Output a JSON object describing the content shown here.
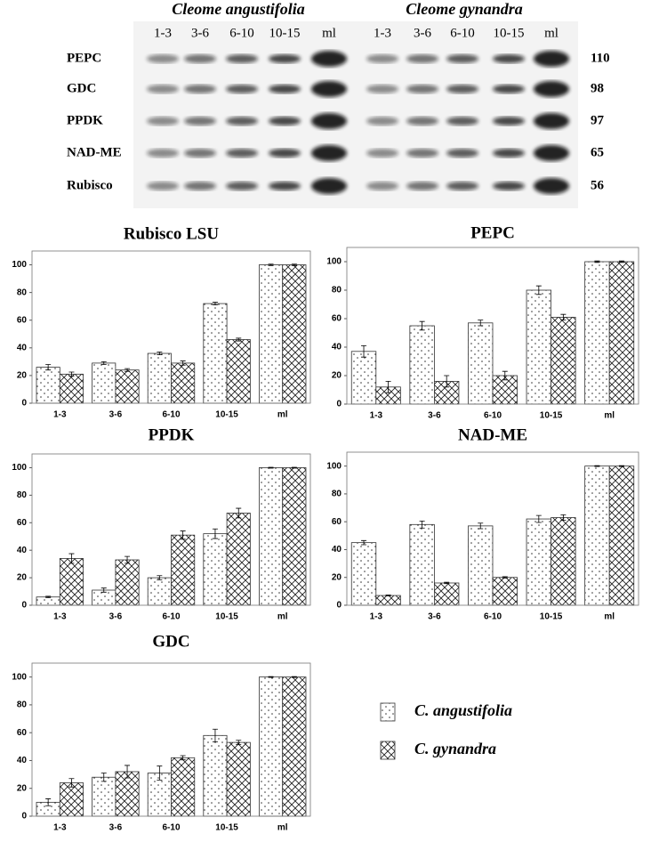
{
  "blot": {
    "species": [
      "Cleome angustifolia",
      "Cleome gynandra"
    ],
    "lanes": [
      "1-3",
      "3-6",
      "6-10",
      "10-15",
      "ml"
    ],
    "proteins": [
      "PEPC",
      "GDC",
      "PPDK",
      "NAD-ME",
      "Rubisco"
    ],
    "sizes": [
      110,
      98,
      97,
      65,
      56
    ]
  },
  "legend": {
    "names": [
      "C. angustifolia",
      "C. gynandra"
    ],
    "fills": [
      "dots",
      "crosshatch"
    ]
  },
  "chart_data": [
    {
      "type": "bar",
      "title": "Rubisco LSU",
      "categories": [
        "1-3",
        "3-6",
        "6-10",
        "10-15",
        "ml"
      ],
      "series": [
        {
          "values": [
            26,
            29,
            36,
            72,
            100
          ],
          "errors": [
            2,
            1,
            1,
            1,
            0.5
          ]
        },
        {
          "values": [
            21,
            24,
            29,
            46,
            100
          ],
          "errors": [
            1.5,
            1,
            1.5,
            1,
            0.5
          ]
        }
      ],
      "ylim": [
        0,
        110
      ],
      "yticks": [
        0,
        20,
        40,
        60,
        80,
        100
      ]
    },
    {
      "type": "bar",
      "title": "PEPC",
      "categories": [
        "1-3",
        "3-6",
        "6-10",
        "10-15",
        "ml"
      ],
      "series": [
        {
          "values": [
            37,
            55,
            57,
            80,
            100
          ],
          "errors": [
            4,
            3,
            2,
            3,
            0.5
          ]
        },
        {
          "values": [
            12,
            16,
            20,
            61,
            100
          ],
          "errors": [
            4,
            4,
            3,
            2,
            0.5
          ]
        }
      ],
      "ylim": [
        0,
        110
      ],
      "yticks": [
        0,
        20,
        40,
        60,
        80,
        100
      ]
    },
    {
      "type": "bar",
      "title": "PPDK",
      "categories": [
        "1-3",
        "3-6",
        "6-10",
        "10-15",
        "ml"
      ],
      "series": [
        {
          "values": [
            6,
            11,
            20,
            52,
            100
          ],
          "errors": [
            0.5,
            1.5,
            1.5,
            3.5,
            0.3
          ]
        },
        {
          "values": [
            34,
            33,
            51,
            67,
            100
          ],
          "errors": [
            3.5,
            2.5,
            3,
            3.5,
            0.3
          ]
        }
      ],
      "ylim": [
        0,
        110
      ],
      "yticks": [
        0,
        20,
        40,
        60,
        80,
        100
      ]
    },
    {
      "type": "bar",
      "title": "NAD-ME",
      "categories": [
        "1-3",
        "3-6",
        "6-10",
        "10-15",
        "ml"
      ],
      "series": [
        {
          "values": [
            45,
            58,
            57,
            62,
            100
          ],
          "errors": [
            1.5,
            2.5,
            2,
            2.5,
            0.3
          ]
        },
        {
          "values": [
            7,
            16,
            20,
            63,
            100
          ],
          "errors": [
            0.3,
            0.5,
            0.5,
            2,
            0.3
          ]
        }
      ],
      "ylim": [
        0,
        110
      ],
      "yticks": [
        0,
        20,
        40,
        60,
        80,
        100
      ]
    },
    {
      "type": "bar",
      "title": "GDC",
      "categories": [
        "1-3",
        "3-6",
        "6-10",
        "10-15",
        "ml"
      ],
      "series": [
        {
          "values": [
            10,
            28,
            31,
            58,
            100
          ],
          "errors": [
            2.5,
            3,
            5,
            4.5,
            0.3
          ]
        },
        {
          "values": [
            24,
            32,
            42,
            53,
            100
          ],
          "errors": [
            3,
            4.5,
            1.5,
            1.5,
            0.3
          ]
        }
      ],
      "ylim": [
        0,
        110
      ],
      "yticks": [
        0,
        20,
        40,
        60,
        80,
        100
      ]
    }
  ]
}
